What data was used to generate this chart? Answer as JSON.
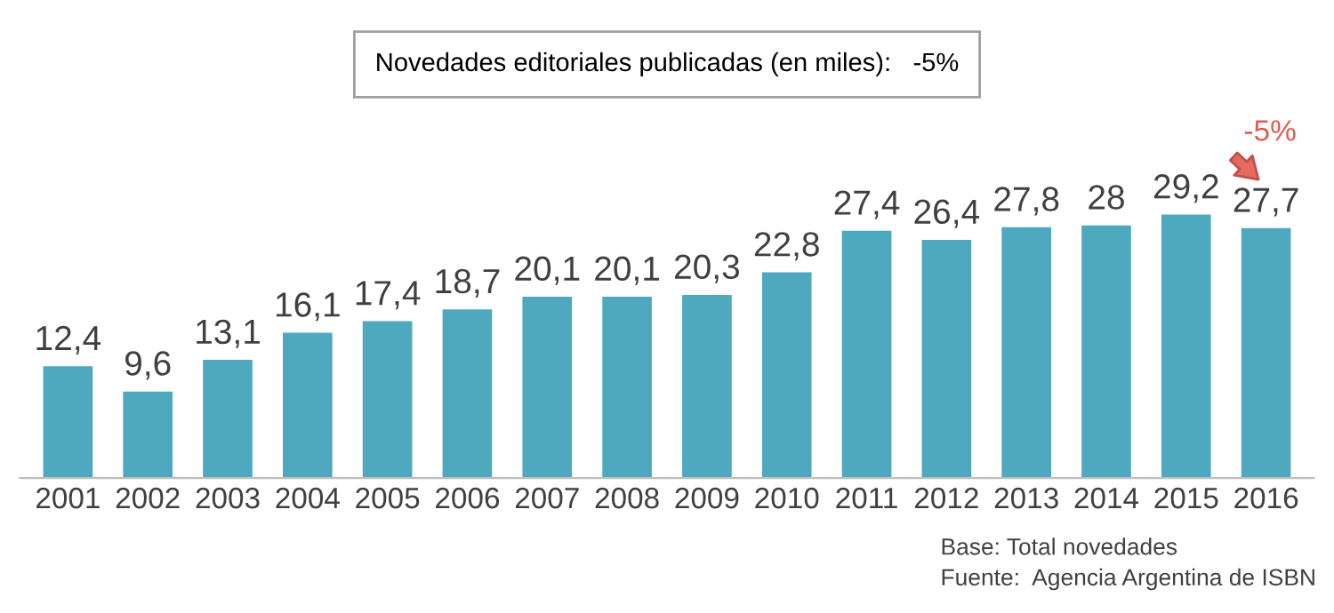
{
  "chart_data": {
    "type": "bar",
    "title": "Novedades editoriales publicadas (en miles):   -5%",
    "categories": [
      "2001",
      "2002",
      "2003",
      "2004",
      "2005",
      "2006",
      "2007",
      "2008",
      "2009",
      "2010",
      "2011",
      "2012",
      "2013",
      "2014",
      "2015",
      "2016"
    ],
    "values": [
      12.4,
      9.6,
      13.1,
      16.1,
      17.4,
      18.7,
      20.1,
      20.1,
      20.3,
      22.8,
      27.4,
      26.4,
      27.8,
      28,
      29.2,
      27.7
    ],
    "value_labels": [
      "12,4",
      "9,6",
      "13,1",
      "16,1",
      "17,4",
      "18,7",
      "20,1",
      "20,1",
      "20,3",
      "22,8",
      "27,4",
      "26,4",
      "27,8",
      "28",
      "29,2",
      "27,7"
    ],
    "color": "#4fa9be",
    "tick_labels": "x",
    "grid": false,
    "legend": false,
    "annotations": [
      "-5%",
      "Base: Total novedades",
      "Fuente:  Agencia Argentina de ISBN"
    ]
  }
}
